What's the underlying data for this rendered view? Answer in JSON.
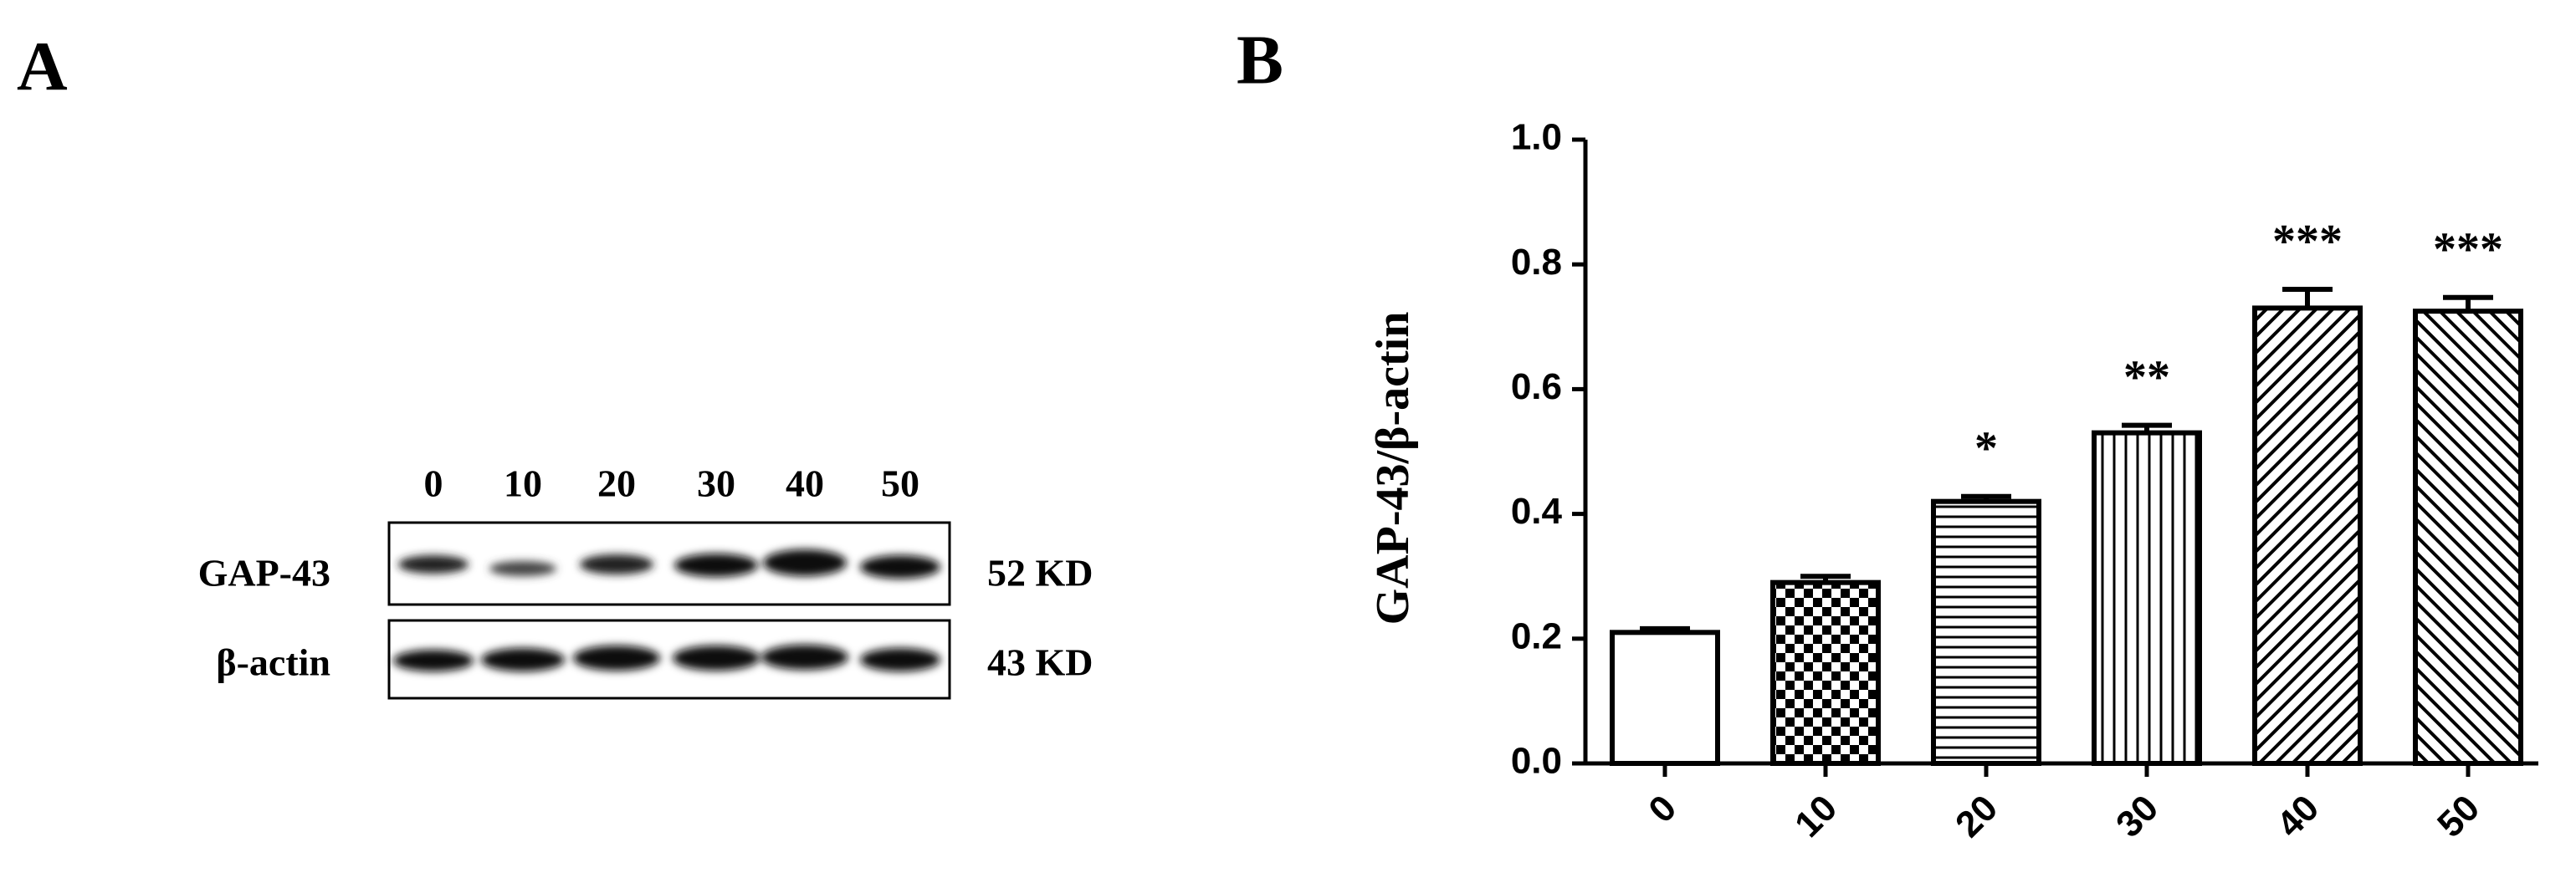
{
  "panel_a": {
    "label": "A",
    "lanes": [
      "0",
      "10",
      "20",
      "30",
      "40",
      "50"
    ],
    "rows": [
      {
        "name": "GAP-43",
        "size": "52 KD"
      },
      {
        "name": "β-actin",
        "size": "43 KD"
      }
    ]
  },
  "chart_data": {
    "type": "bar",
    "panel_label": "B",
    "ylabel": "GAP-43/β-actin",
    "categories": [
      "0",
      "10",
      "20",
      "30",
      "40",
      "50"
    ],
    "values": [
      0.21,
      0.29,
      0.42,
      0.53,
      0.73,
      0.725
    ],
    "errors": [
      0.006,
      0.01,
      0.008,
      0.012,
      0.03,
      0.022
    ],
    "annotations": [
      null,
      null,
      "*",
      "**",
      "***",
      "***"
    ],
    "patterns": [
      "none",
      "checker",
      "horizontal",
      "vertical",
      "diagonal-dense",
      "diagonal"
    ],
    "color": "#000000",
    "ylim": [
      0,
      1
    ],
    "yticks": [
      {
        "value": 0,
        "label": "0.0"
      },
      0.2,
      0.4,
      0.6,
      0.8,
      {
        "value": 1,
        "label": "1.0"
      }
    ]
  }
}
